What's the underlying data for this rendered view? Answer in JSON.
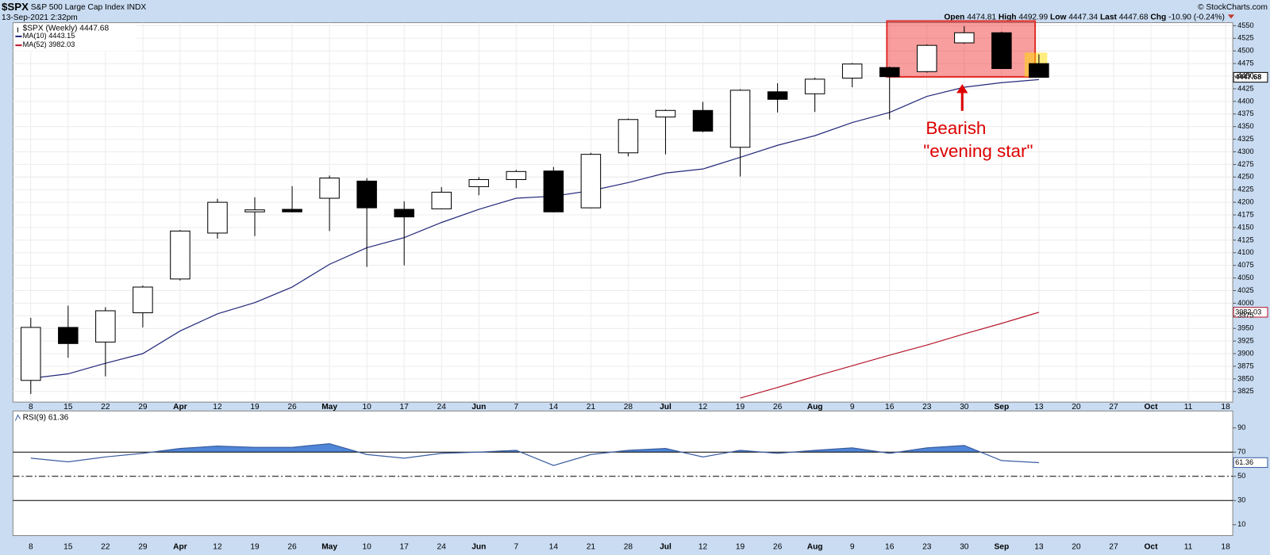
{
  "header": {
    "symbol": "$SPX",
    "description": "S&P 500 Large Cap Index",
    "exchange": "INDX",
    "datetime": "13-Sep-2021 2:32pm",
    "quote": [
      {
        "label": "Open",
        "value": "4474.81"
      },
      {
        "label": "High",
        "value": "4492.99"
      },
      {
        "label": "Low",
        "value": "4447.34"
      },
      {
        "label": "Last",
        "value": "4447.68"
      },
      {
        "label": "Chg",
        "value": "-10.90 (-0.24%)"
      }
    ],
    "credit": "© StockCharts.com"
  },
  "chart_data": [
    {
      "type": "candlestick",
      "name": "$SPX (Weekly)",
      "value_label": "4447.68",
      "categories": [
        "8",
        "15",
        "22",
        "29",
        "Apr",
        "12",
        "19",
        "26",
        "May",
        "10",
        "17",
        "24",
        "Jun",
        "7",
        "14",
        "21",
        "28",
        "Jul",
        "12",
        "19",
        "26",
        "Aug",
        "9",
        "16",
        "23",
        "30",
        "Sep",
        "13",
        "20",
        "27",
        "Oct",
        "11",
        "18"
      ],
      "open": [
        3847,
        3952,
        3923,
        3981,
        4048,
        4139,
        4181,
        4186,
        4208,
        4242,
        4186,
        4187,
        4231,
        4245,
        4262,
        4189,
        4298,
        4369,
        4382,
        4309,
        4419,
        4415,
        4446,
        4467,
        4459,
        4516,
        4536,
        4474.81,
        null,
        null,
        null,
        null,
        null
      ],
      "high": [
        3971,
        3995,
        3992,
        4035,
        4145,
        4207,
        4210,
        4232,
        4253,
        4248,
        4202,
        4230,
        4250,
        4264,
        4270,
        4298,
        4366,
        4384,
        4399,
        4424,
        4436,
        4447,
        4476,
        4469,
        4513,
        4549,
        4538,
        4492.99,
        null,
        null,
        null,
        null,
        null
      ],
      "low": [
        3820,
        3892,
        3855,
        3952,
        4045,
        4128,
        4133,
        4180,
        4143,
        4072,
        4075,
        4186,
        4214,
        4228,
        4180,
        4188,
        4291,
        4295,
        4339,
        4251,
        4378,
        4379,
        4428,
        4364,
        4457,
        4514,
        4464,
        4447.34,
        null,
        null,
        null,
        null,
        null
      ],
      "close": [
        3952,
        3920,
        3985,
        4032,
        4143,
        4200,
        4185,
        4181,
        4248,
        4189,
        4171,
        4220,
        4245,
        4261,
        4181,
        4295,
        4364,
        4382,
        4341,
        4422,
        4404,
        4444,
        4474,
        4449,
        4511,
        4536,
        4465,
        4447.68,
        null,
        null,
        null,
        null,
        null
      ],
      "series": [
        {
          "name": "MA(10)",
          "color": "#23297a",
          "value_label": "4443.15",
          "values": [
            3851,
            3860,
            3881,
            3900,
            3945,
            3979,
            4001,
            4032,
            4077,
            4110,
            4130,
            4160,
            4186,
            4208,
            4212,
            4223,
            4239,
            4258,
            4266,
            4289,
            4313,
            4332,
            4358,
            4378,
            4410,
            4428,
            4437,
            4443.15,
            null,
            null,
            null,
            null,
            null
          ]
        },
        {
          "name": "MA(52)",
          "color": "#b5172c",
          "value_label": "3982.03",
          "values": [
            null,
            null,
            null,
            null,
            null,
            null,
            null,
            null,
            null,
            null,
            null,
            null,
            null,
            null,
            null,
            null,
            null,
            null,
            null,
            3812,
            3833,
            3855,
            3876,
            3897,
            3917,
            3939,
            3960,
            3982.03,
            null,
            null,
            null,
            null,
            null
          ]
        }
      ],
      "ylim": [
        3804,
        4556
      ],
      "yticks": [
        3825,
        3850,
        3875,
        3900,
        3925,
        3950,
        3975,
        4000,
        4025,
        4050,
        4075,
        4100,
        4125,
        4150,
        4175,
        4200,
        4225,
        4250,
        4275,
        4300,
        4325,
        4350,
        4375,
        4400,
        4425,
        4450,
        4475,
        4500,
        4525,
        4550
      ],
      "grid": true,
      "annotation": [
        "Bearish",
        "\"evening star\""
      ]
    },
    {
      "type": "line",
      "name": "RSI(9)",
      "value_label": "61.36",
      "color": "#3a5da0",
      "fill_color": "#4f86d8",
      "values": [
        65,
        62,
        66,
        69,
        73,
        75,
        74,
        74,
        77,
        68,
        65,
        69,
        70,
        71.5,
        59,
        68,
        71.5,
        73,
        66,
        71.5,
        69,
        71.5,
        73.5,
        69,
        73.5,
        75.5,
        63,
        61.36,
        null,
        null,
        null,
        null,
        null
      ],
      "ylim": [
        1,
        104
      ],
      "yticks": [
        10,
        30,
        50,
        70,
        90
      ],
      "overbought": 70,
      "midline": 50,
      "oversold": 30
    }
  ]
}
